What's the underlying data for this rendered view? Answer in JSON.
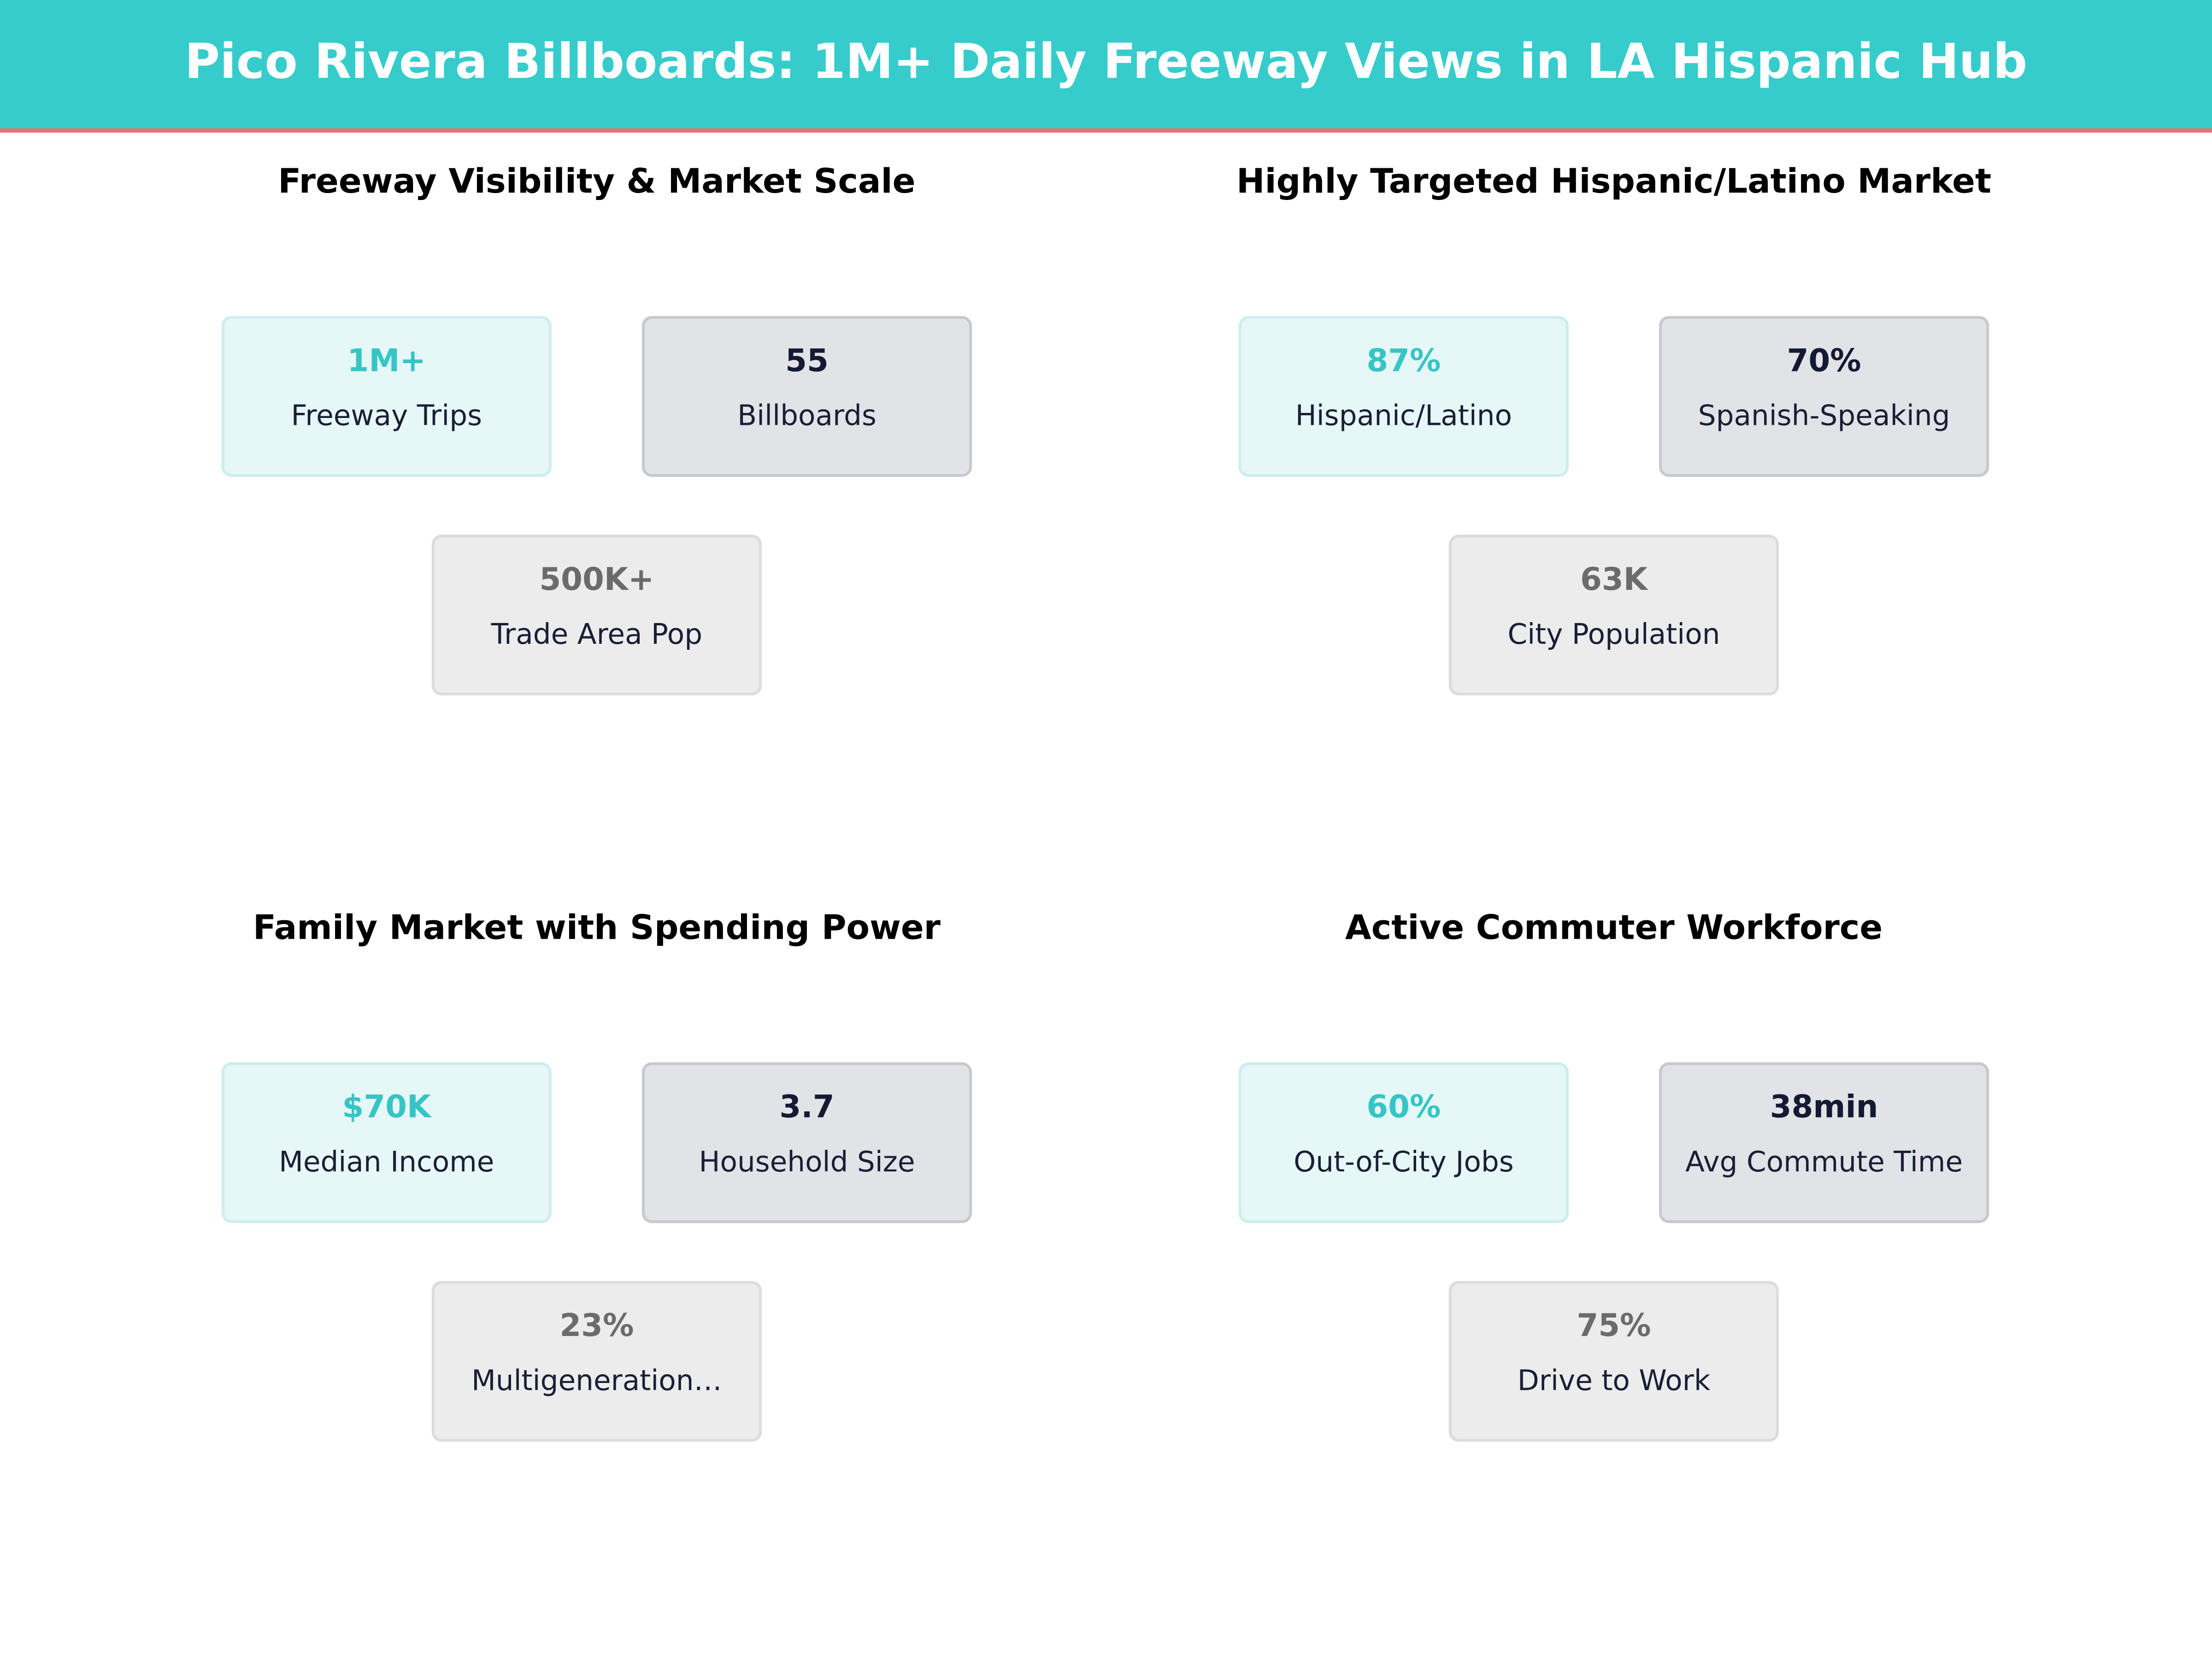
{
  "header": {
    "title": "Pico Rivera Billboards: 1M+ Daily Freeway Views in LA Hispanic Hub"
  },
  "panels": [
    {
      "title": "Freeway Visibility & Market Scale",
      "cards": [
        {
          "value": "1M+",
          "label": "Freeway Trips"
        },
        {
          "value": "55",
          "label": "Billboards"
        },
        {
          "value": "500K+",
          "label": "Trade Area Pop"
        }
      ]
    },
    {
      "title": "Highly Targeted Hispanic/Latino Market",
      "cards": [
        {
          "value": "87%",
          "label": "Hispanic/Latino"
        },
        {
          "value": "70%",
          "label": "Spanish-Speaking"
        },
        {
          "value": "63K",
          "label": "City Population"
        }
      ]
    },
    {
      "title": "Family Market with Spending Power",
      "cards": [
        {
          "value": "$70K",
          "label": "Median Income"
        },
        {
          "value": "3.7",
          "label": "Household Size"
        },
        {
          "value": "23%",
          "label": "Multigeneration…"
        }
      ]
    },
    {
      "title": "Active Commuter Workforce",
      "cards": [
        {
          "value": "60%",
          "label": "Out-of-City Jobs"
        },
        {
          "value": "38min",
          "label": "Avg Commute Time"
        },
        {
          "value": "75%",
          "label": "Drive to Work"
        }
      ]
    }
  ]
}
